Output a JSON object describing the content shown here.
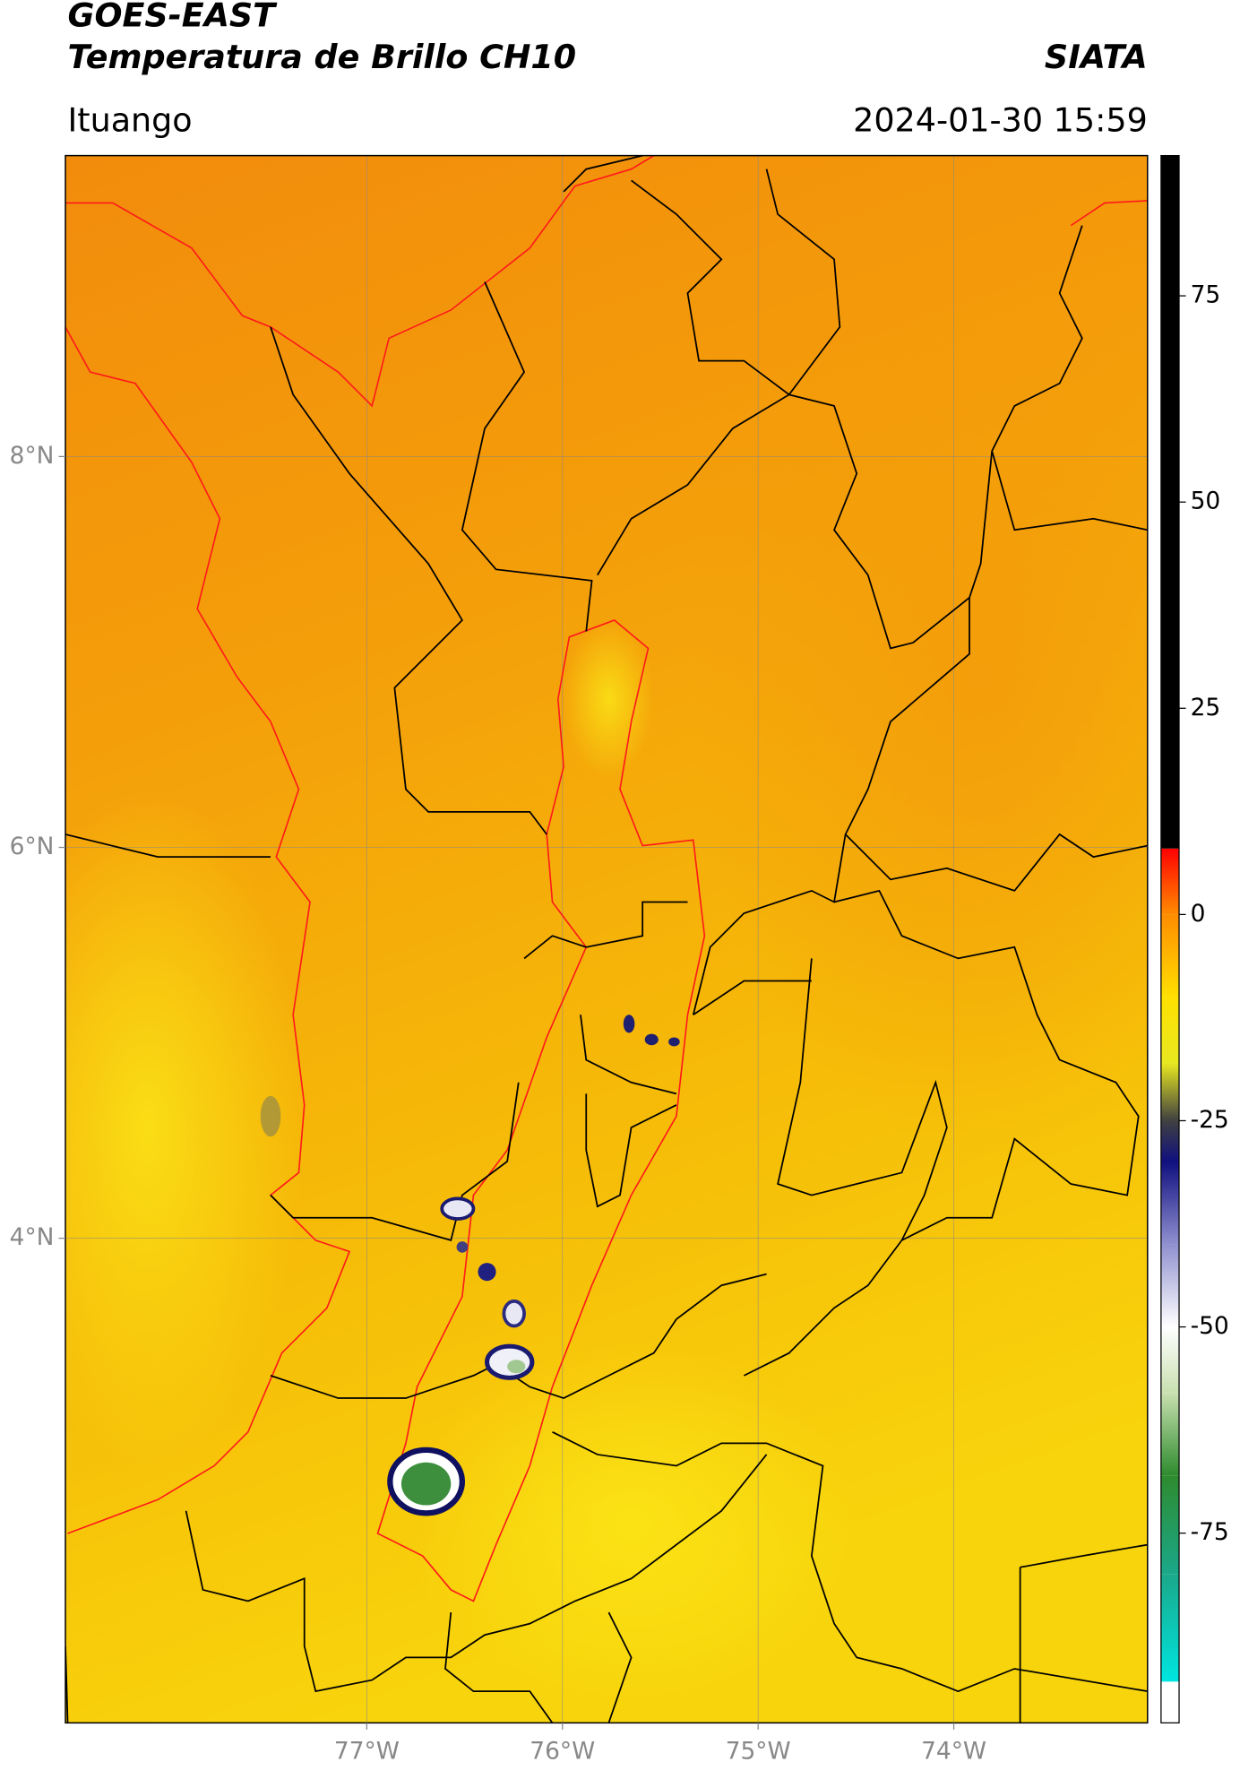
{
  "chart_data": {
    "type": "map",
    "title": "GOES-EAST",
    "subtitle": "Temperatura de Brillo CH10",
    "brand": "SIATA",
    "location": "Ituango",
    "date": "2024-01-30 15:59",
    "xlim": [
      -78.54,
      -73.01
    ],
    "ylim": [
      1.52,
      9.54
    ],
    "xticks": [
      {
        "value": -77,
        "label": "77°W"
      },
      {
        "value": -76,
        "label": "76°W"
      },
      {
        "value": -75,
        "label": "75°W"
      },
      {
        "value": -74,
        "label": "74°W"
      }
    ],
    "yticks": [
      {
        "value": 8,
        "label": "8°N"
      },
      {
        "value": 6,
        "label": "6°N"
      },
      {
        "value": 4,
        "label": "4°N"
      }
    ],
    "grid": true,
    "clim": [
      -98,
      92
    ],
    "cticks": [
      75,
      50,
      25,
      0,
      -25,
      -50,
      -75
    ],
    "colormap": [
      [
        -98,
        "#ffffff"
      ],
      [
        -93,
        "#ffffff"
      ],
      [
        -93,
        "#00e5e0"
      ],
      [
        -80,
        "#1aa88a"
      ],
      [
        -68,
        "#2e8b2e"
      ],
      [
        -58,
        "#c8e0b0"
      ],
      [
        -50,
        "#ffffff"
      ],
      [
        -40,
        "#9090d0"
      ],
      [
        -30,
        "#101080"
      ],
      [
        -25,
        "#404040"
      ],
      [
        -18,
        "#e8e820"
      ],
      [
        -10,
        "#ffe000"
      ],
      [
        0,
        "#ff8c00"
      ],
      [
        8,
        "#ff0000"
      ],
      [
        8,
        "#000000"
      ],
      [
        92,
        "#000000"
      ]
    ]
  }
}
